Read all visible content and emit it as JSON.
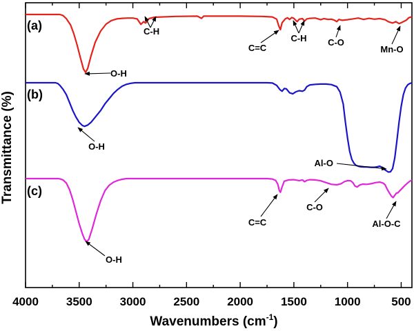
{
  "chart_data": {
    "type": "line",
    "title": "",
    "xlabel": "Wavenumbers (cm",
    "xlabel_sup": "-1",
    "xlabel_close": ")",
    "ylabel": "Transmittance (%)",
    "xlim": [
      4000,
      400
    ],
    "x_reversed": true,
    "x_ticks": [
      "4000",
      "3500",
      "3000",
      "2500",
      "2000",
      "1500",
      "1000",
      "500"
    ],
    "y_ticks_shown": false,
    "grid": false,
    "series": [
      {
        "label": "(a)",
        "color": "#e3221b",
        "points": [
          [
            4000,
            0.0
          ],
          [
            3800,
            0.0
          ],
          [
            3700,
            0.0
          ],
          [
            3680,
            0.0
          ],
          [
            3650,
            0.4
          ],
          [
            3620,
            1.5
          ],
          [
            3580,
            3.8
          ],
          [
            3550,
            7.0
          ],
          [
            3520,
            11.0
          ],
          [
            3490,
            15.5
          ],
          [
            3460,
            19.8
          ],
          [
            3440,
            21.0
          ],
          [
            3420,
            19.5
          ],
          [
            3390,
            15.0
          ],
          [
            3350,
            10.0
          ],
          [
            3300,
            6.0
          ],
          [
            3250,
            3.5
          ],
          [
            3200,
            2.2
          ],
          [
            3150,
            1.6
          ],
          [
            3100,
            1.4
          ],
          [
            3050,
            1.3
          ],
          [
            3000,
            1.3
          ],
          [
            2960,
            1.6
          ],
          [
            2925,
            3.6
          ],
          [
            2900,
            2.6
          ],
          [
            2880,
            3.1
          ],
          [
            2850,
            1.5
          ],
          [
            2800,
            1.0
          ],
          [
            2600,
            0.7
          ],
          [
            2400,
            0.6
          ],
          [
            2360,
            1.4
          ],
          [
            2340,
            0.6
          ],
          [
            2000,
            0.6
          ],
          [
            1800,
            0.7
          ],
          [
            1700,
            0.9
          ],
          [
            1660,
            1.7
          ],
          [
            1640,
            4.2
          ],
          [
            1625,
            5.5
          ],
          [
            1610,
            3.0
          ],
          [
            1580,
            1.6
          ],
          [
            1560,
            1.2
          ],
          [
            1540,
            1.8
          ],
          [
            1520,
            1.1
          ],
          [
            1500,
            1.4
          ],
          [
            1470,
            2.6
          ],
          [
            1450,
            1.7
          ],
          [
            1420,
            1.5
          ],
          [
            1400,
            2.4
          ],
          [
            1380,
            1.6
          ],
          [
            1350,
            1.4
          ],
          [
            1300,
            1.3
          ],
          [
            1250,
            1.9
          ],
          [
            1220,
            1.5
          ],
          [
            1180,
            1.8
          ],
          [
            1150,
            1.7
          ],
          [
            1120,
            2.1
          ],
          [
            1100,
            2.6
          ],
          [
            1080,
            1.8
          ],
          [
            1050,
            2.1
          ],
          [
            1000,
            1.9
          ],
          [
            950,
            1.6
          ],
          [
            900,
            1.3
          ],
          [
            850,
            1.8
          ],
          [
            800,
            1.4
          ],
          [
            750,
            1.7
          ],
          [
            700,
            1.5
          ],
          [
            650,
            1.9
          ],
          [
            620,
            2.6
          ],
          [
            580,
            3.1
          ],
          [
            550,
            2.6
          ],
          [
            520,
            3.3
          ],
          [
            500,
            3.0
          ],
          [
            470,
            2.4
          ],
          [
            450,
            2.0
          ],
          [
            430,
            1.2
          ],
          [
            400,
            0.8
          ]
        ]
      },
      {
        "label": "(b)",
        "color": "#1a14c8",
        "points": [
          [
            4000,
            0.0
          ],
          [
            3800,
            0.0
          ],
          [
            3720,
            0.0
          ],
          [
            3700,
            0.3
          ],
          [
            3680,
            1.0
          ],
          [
            3650,
            2.5
          ],
          [
            3620,
            4.5
          ],
          [
            3590,
            7.5
          ],
          [
            3560,
            10.5
          ],
          [
            3530,
            13.0
          ],
          [
            3500,
            15.0
          ],
          [
            3470,
            16.2
          ],
          [
            3450,
            16.5
          ],
          [
            3420,
            16.0
          ],
          [
            3390,
            15.0
          ],
          [
            3350,
            13.0
          ],
          [
            3300,
            10.5
          ],
          [
            3260,
            8.0
          ],
          [
            3220,
            6.0
          ],
          [
            3180,
            4.0
          ],
          [
            3140,
            2.5
          ],
          [
            3100,
            1.3
          ],
          [
            3060,
            0.6
          ],
          [
            3020,
            0.2
          ],
          [
            2980,
            0.0
          ],
          [
            2500,
            0.0
          ],
          [
            2000,
            0.0
          ],
          [
            1750,
            0.0
          ],
          [
            1700,
            0.1
          ],
          [
            1660,
            1.0
          ],
          [
            1630,
            2.6
          ],
          [
            1610,
            3.2
          ],
          [
            1590,
            2.2
          ],
          [
            1570,
            2.3
          ],
          [
            1540,
            3.8
          ],
          [
            1510,
            4.2
          ],
          [
            1480,
            3.4
          ],
          [
            1450,
            3.0
          ],
          [
            1420,
            3.2
          ],
          [
            1400,
            2.8
          ],
          [
            1380,
            1.5
          ],
          [
            1350,
            0.8
          ],
          [
            1300,
            0.6
          ],
          [
            1250,
            0.5
          ],
          [
            1200,
            0.5
          ],
          [
            1150,
            0.7
          ],
          [
            1100,
            1.5
          ],
          [
            1070,
            3.5
          ],
          [
            1040,
            8.0
          ],
          [
            1020,
            15.0
          ],
          [
            1000,
            21.0
          ],
          [
            980,
            26.0
          ],
          [
            960,
            29.0
          ],
          [
            940,
            30.5
          ],
          [
            920,
            31.3
          ],
          [
            900,
            31.6
          ],
          [
            880,
            31.8
          ],
          [
            850,
            31.9
          ],
          [
            820,
            31.9
          ],
          [
            780,
            32.0
          ],
          [
            750,
            32.0
          ],
          [
            720,
            31.8
          ],
          [
            700,
            31.6
          ],
          [
            690,
            31.8
          ],
          [
            670,
            32.5
          ],
          [
            640,
            33.3
          ],
          [
            620,
            33.8
          ],
          [
            600,
            33.7
          ],
          [
            580,
            32.5
          ],
          [
            560,
            28.5
          ],
          [
            540,
            22.0
          ],
          [
            520,
            15.0
          ],
          [
            500,
            9.0
          ],
          [
            480,
            4.5
          ],
          [
            460,
            2.0
          ],
          [
            440,
            0.8
          ],
          [
            420,
            0.3
          ],
          [
            400,
            0.0
          ]
        ]
      },
      {
        "label": "(c)",
        "color": "#e026d8",
        "points": [
          [
            4000,
            0.0
          ],
          [
            3800,
            0.0
          ],
          [
            3700,
            0.0
          ],
          [
            3680,
            0.1
          ],
          [
            3650,
            0.6
          ],
          [
            3620,
            2.0
          ],
          [
            3590,
            5.0
          ],
          [
            3560,
            9.5
          ],
          [
            3530,
            15.0
          ],
          [
            3500,
            20.5
          ],
          [
            3470,
            25.0
          ],
          [
            3450,
            27.5
          ],
          [
            3430,
            28.6
          ],
          [
            3410,
            27.5
          ],
          [
            3380,
            23.0
          ],
          [
            3340,
            16.0
          ],
          [
            3300,
            10.0
          ],
          [
            3260,
            5.5
          ],
          [
            3220,
            3.0
          ],
          [
            3180,
            1.6
          ],
          [
            3140,
            0.8
          ],
          [
            3100,
            0.3
          ],
          [
            3060,
            0.0
          ],
          [
            2500,
            0.0
          ],
          [
            2000,
            0.0
          ],
          [
            1750,
            0.0
          ],
          [
            1700,
            0.2
          ],
          [
            1670,
            0.8
          ],
          [
            1650,
            2.5
          ],
          [
            1635,
            5.5
          ],
          [
            1625,
            6.2
          ],
          [
            1610,
            3.8
          ],
          [
            1590,
            1.2
          ],
          [
            1550,
            0.6
          ],
          [
            1500,
            0.5
          ],
          [
            1450,
            0.9
          ],
          [
            1420,
            0.6
          ],
          [
            1400,
            1.4
          ],
          [
            1380,
            0.8
          ],
          [
            1350,
            0.5
          ],
          [
            1300,
            0.6
          ],
          [
            1250,
            1.0
          ],
          [
            1200,
            1.8
          ],
          [
            1150,
            2.6
          ],
          [
            1100,
            2.8
          ],
          [
            1060,
            2.3
          ],
          [
            1030,
            1.4
          ],
          [
            1000,
            0.9
          ],
          [
            970,
            1.0
          ],
          [
            950,
            1.8
          ],
          [
            930,
            3.4
          ],
          [
            910,
            3.8
          ],
          [
            890,
            3.0
          ],
          [
            860,
            2.5
          ],
          [
            820,
            2.6
          ],
          [
            780,
            2.3
          ],
          [
            740,
            1.8
          ],
          [
            700,
            1.6
          ],
          [
            670,
            2.0
          ],
          [
            650,
            2.8
          ],
          [
            630,
            4.8
          ],
          [
            610,
            6.5
          ],
          [
            590,
            8.0
          ],
          [
            575,
            8.6
          ],
          [
            560,
            7.6
          ],
          [
            545,
            6.6
          ],
          [
            530,
            6.4
          ],
          [
            515,
            5.6
          ],
          [
            495,
            4.6
          ],
          [
            470,
            3.3
          ],
          [
            445,
            2.2
          ],
          [
            420,
            1.2
          ],
          [
            400,
            0.7
          ]
        ]
      }
    ],
    "annotations": [
      {
        "series": "(a)",
        "text": "C-H"
      },
      {
        "series": "(a)",
        "text": "C=C"
      },
      {
        "series": "(a)",
        "text": "C-H"
      },
      {
        "series": "(a)",
        "text": "C-O"
      },
      {
        "series": "(a)",
        "text": "Mn-O"
      },
      {
        "series": "(a)",
        "text": "O-H"
      },
      {
        "series": "(b)",
        "text": "O-H"
      },
      {
        "series": "(b)",
        "text": "Al-O"
      },
      {
        "series": "(c)",
        "text": "C=C"
      },
      {
        "series": "(c)",
        "text": "C-O"
      },
      {
        "series": "(c)",
        "text": "Al-O-C"
      },
      {
        "series": "(c)",
        "text": "O-H"
      }
    ]
  }
}
